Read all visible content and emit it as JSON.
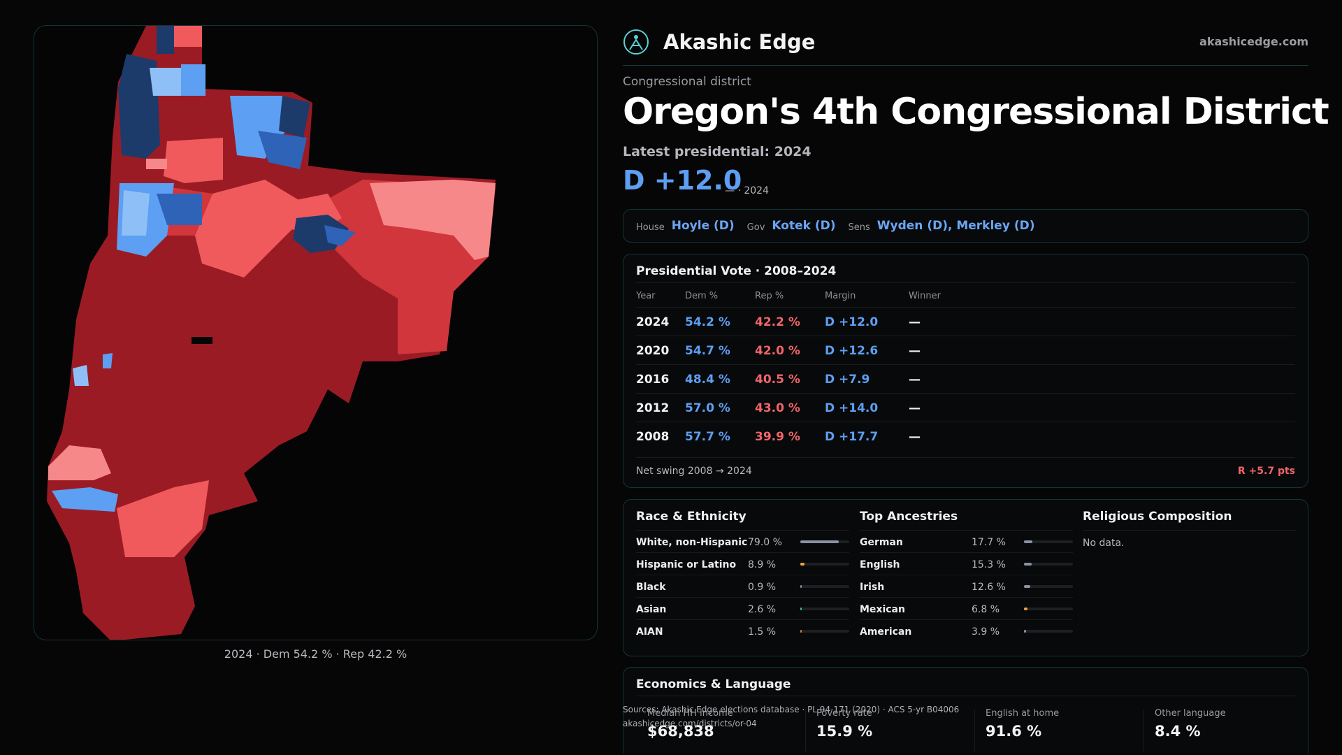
{
  "brand": {
    "name": "Akashic Edge",
    "url": "akashicedge.com",
    "logo_icon": "akashic-edge-logo-icon"
  },
  "district": {
    "kind": "Congressional district",
    "title": "Oregon's 4th Congressional District",
    "latest_label": "Latest presidential: 2024",
    "margin": "D +12.0",
    "margin_sub": "— · 2024"
  },
  "reps": {
    "house_label": "House",
    "house": "Hoyle (D)",
    "gov_label": "Gov",
    "gov": "Kotek (D)",
    "sens_label": "Sens",
    "sens": "Wyden (D), Merkley (D)"
  },
  "map": {
    "caption": "2024 · Dem 54.2 % · Rep 42.2 %",
    "colors": {
      "safe_rep": "#9b1b24",
      "likely_rep": "#d0363c",
      "lean_rep": "#f05a5c",
      "tilt_rep": "#f7888a",
      "tilt_dem": "#8ec0f7",
      "lean_dem": "#5d9ff2",
      "likely_dem": "#2e63b8",
      "safe_dem": "#1c3b6b"
    }
  },
  "presidential": {
    "title": "Presidential Vote · 2008–2024",
    "headers": {
      "year": "Year",
      "dem": "Dem %",
      "rep": "Rep %",
      "margin": "Margin",
      "winner": "Winner"
    },
    "rows": [
      {
        "year": "2024",
        "dem": "54.2 %",
        "rep": "42.2 %",
        "margin": "D +12.0",
        "winner": "—"
      },
      {
        "year": "2020",
        "dem": "54.7 %",
        "rep": "42.0 %",
        "margin": "D +12.6",
        "winner": "—"
      },
      {
        "year": "2016",
        "dem": "48.4 %",
        "rep": "40.5 %",
        "margin": "D +7.9",
        "winner": "—"
      },
      {
        "year": "2012",
        "dem": "57.0 %",
        "rep": "43.0 %",
        "margin": "D +14.0",
        "winner": "—"
      },
      {
        "year": "2008",
        "dem": "57.7 %",
        "rep": "39.9 %",
        "margin": "D +17.7",
        "winner": "—"
      }
    ],
    "net_label": "Net swing 2008 → 2024",
    "net_value": "R +5.7 pts"
  },
  "race": {
    "title": "Race & Ethnicity",
    "rows": [
      {
        "label": "White, non-Hispanic",
        "pct": "79.0 %",
        "value": 79.0,
        "color": "#8a93a3"
      },
      {
        "label": "Hispanic or Latino",
        "pct": "8.9 %",
        "value": 8.9,
        "color": "#f2a33a"
      },
      {
        "label": "Black",
        "pct": "0.9 %",
        "value": 0.9,
        "color": "#8a93a3"
      },
      {
        "label": "Asian",
        "pct": "2.6 %",
        "value": 2.6,
        "color": "#2fc6a0"
      },
      {
        "label": "AIAN",
        "pct": "1.5 %",
        "value": 1.5,
        "color": "#d9783a"
      }
    ]
  },
  "ancestry": {
    "title": "Top Ancestries",
    "rows": [
      {
        "label": "German",
        "pct": "17.7 %",
        "value": 17.7,
        "color": "#8a93a3"
      },
      {
        "label": "English",
        "pct": "15.3 %",
        "value": 15.3,
        "color": "#8a93a3"
      },
      {
        "label": "Irish",
        "pct": "12.6 %",
        "value": 12.6,
        "color": "#8a93a3"
      },
      {
        "label": "Mexican",
        "pct": "6.8 %",
        "value": 6.8,
        "color": "#f2a33a"
      },
      {
        "label": "American",
        "pct": "3.9 %",
        "value": 3.9,
        "color": "#8a93a3"
      }
    ]
  },
  "religion": {
    "title": "Religious Composition",
    "empty": "No data."
  },
  "economics": {
    "title": "Economics & Language",
    "stats": [
      {
        "label": "Median HH income",
        "value": "$68,838"
      },
      {
        "label": "Poverty rate",
        "value": "15.9 %"
      },
      {
        "label": "English at home",
        "value": "91.6 %"
      },
      {
        "label": "Other language",
        "value": "8.4 %"
      }
    ]
  },
  "sources": {
    "line1": "Sources: Akashic Edge elections database · PL 94-171 (2020) · ACS 5-yr B04006",
    "line2": "akashicedge.com/districts/or-04"
  }
}
